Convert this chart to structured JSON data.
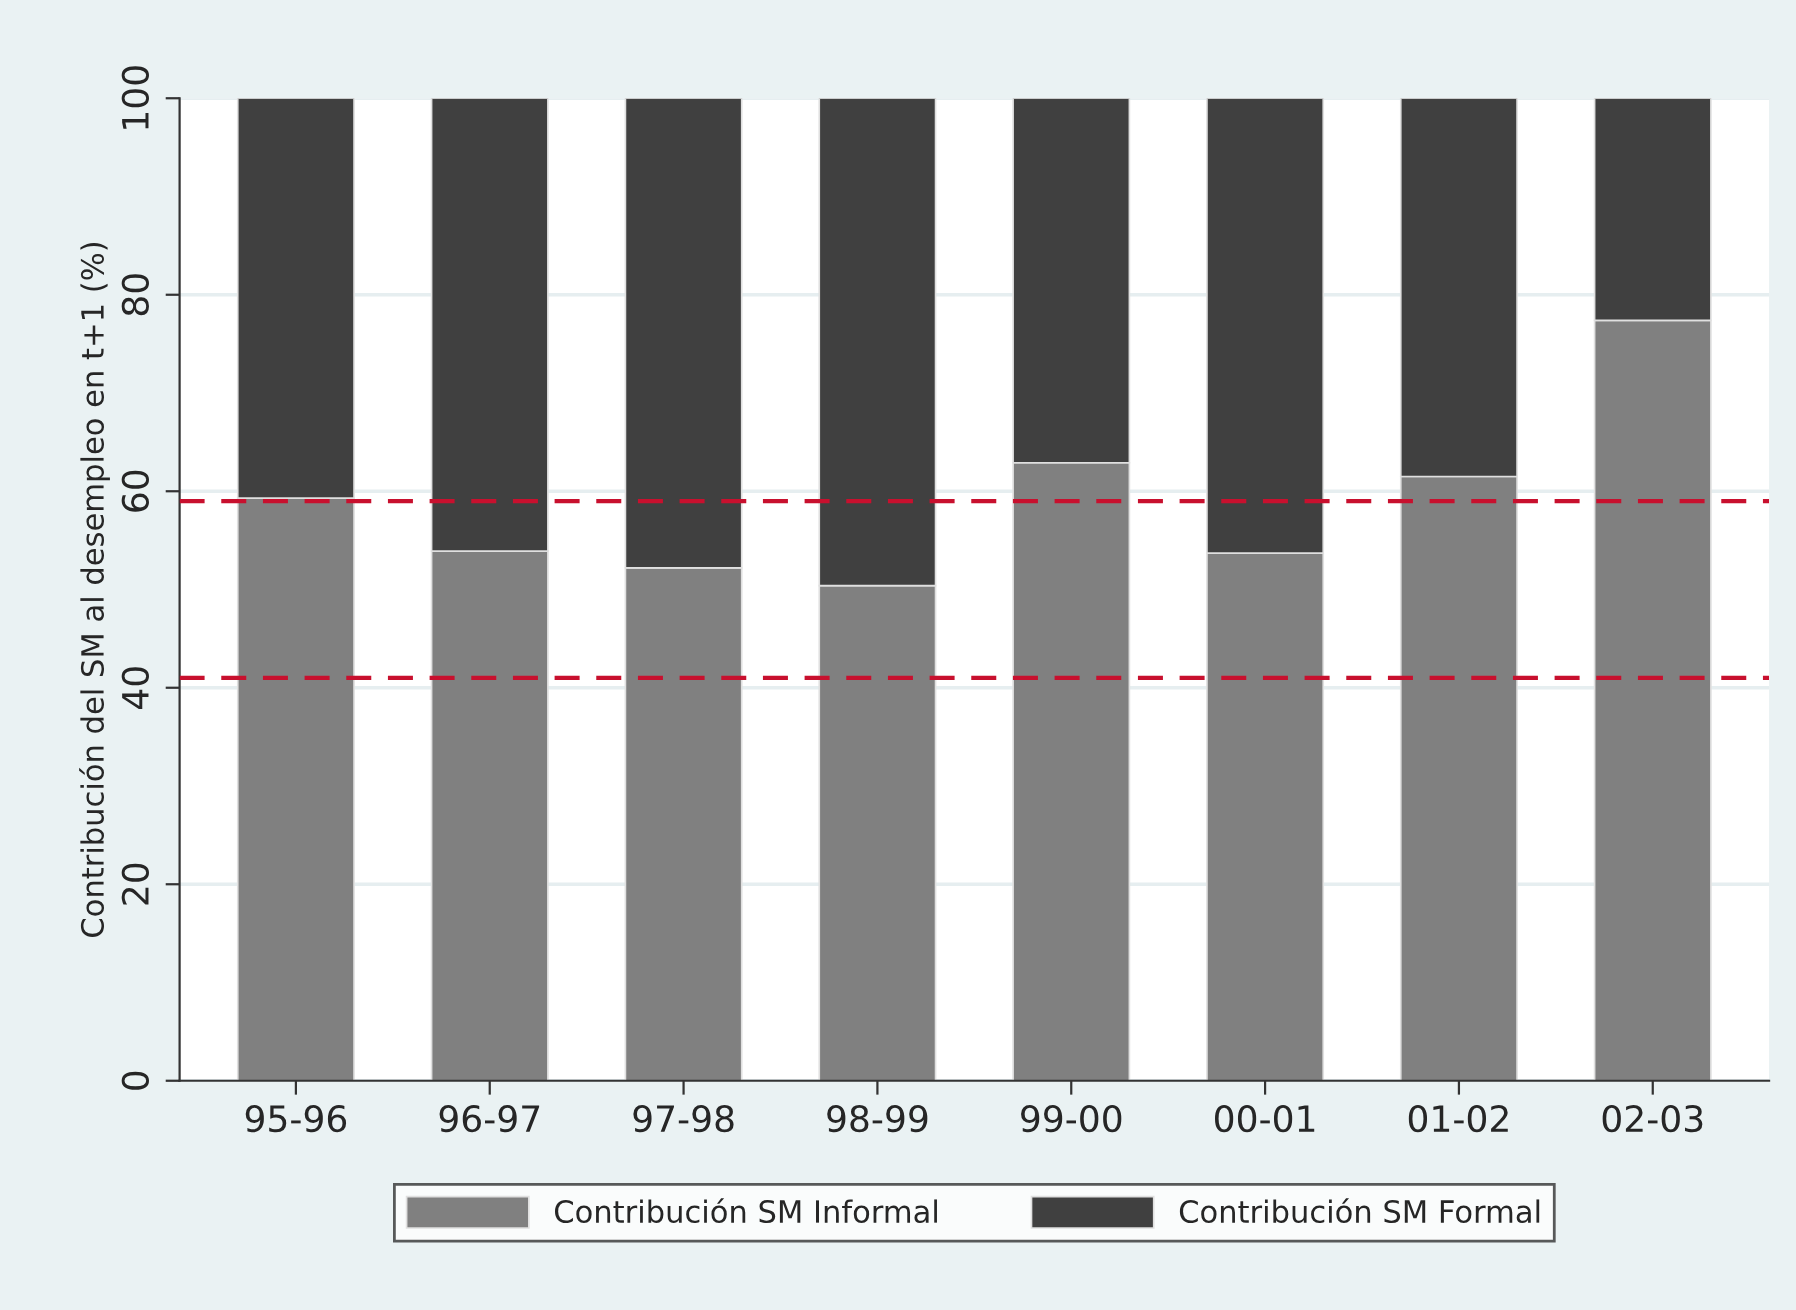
{
  "chart_data": {
    "type": "bar",
    "stacked": true,
    "ylabel": "Contribución del SM al desempleo en t+1 (%)",
    "categories": [
      "95-96",
      "96-97",
      "97-98",
      "98-99",
      "99-00",
      "00-01",
      "01-02",
      "02-03"
    ],
    "series": [
      {
        "name": "Contribución SM Informal",
        "color": "#808080",
        "values": [
          59.3,
          53.9,
          52.2,
          50.4,
          62.9,
          53.7,
          61.5,
          77.4
        ]
      },
      {
        "name": "Contribución SM Formal",
        "color": "#404040",
        "values": [
          40.7,
          46.1,
          47.8,
          49.6,
          37.1,
          46.3,
          38.5,
          22.6
        ]
      }
    ],
    "ylim": [
      0,
      100
    ],
    "yticks": [
      0,
      20,
      40,
      60,
      80,
      100
    ],
    "grid": "y",
    "legend": "bottom",
    "ref_lines": [
      {
        "axis": "y",
        "value": 59,
        "color": "#c8102e",
        "line_style": "dashed"
      },
      {
        "axis": "y",
        "value": 41,
        "color": "#c8102e",
        "line_style": "dashed"
      }
    ]
  }
}
